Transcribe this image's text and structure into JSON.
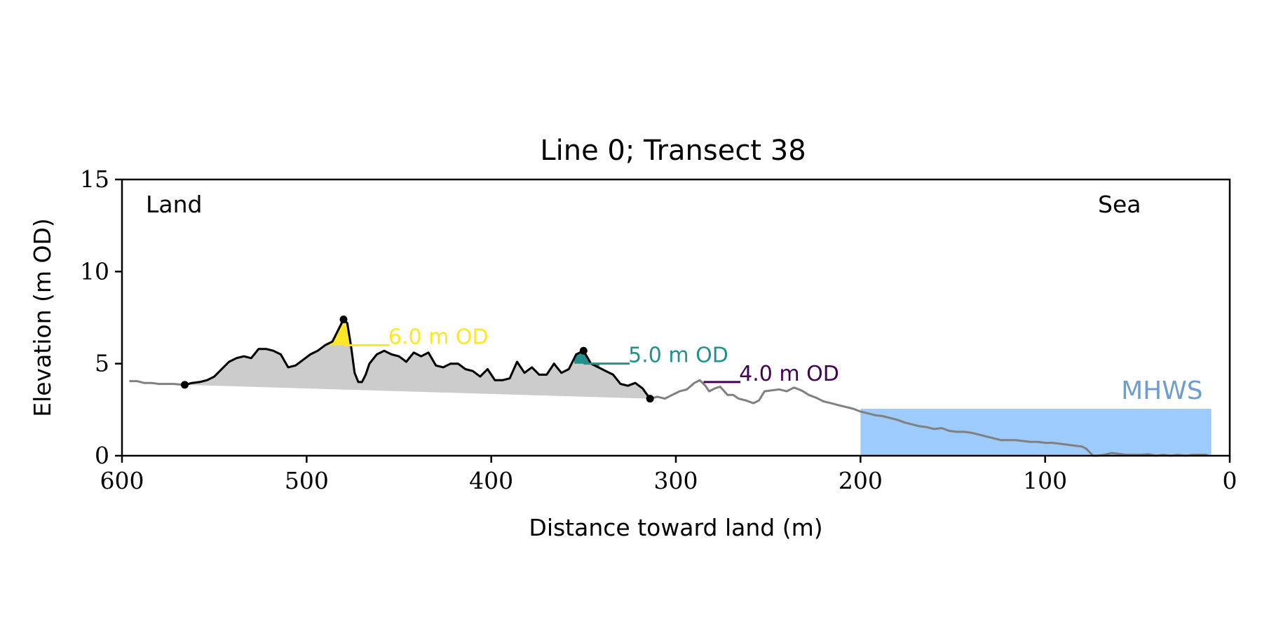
{
  "chart_data": {
    "type": "line",
    "title": "Line 0; Transect 38",
    "xlabel": "Distance toward land (m)",
    "ylabel": "Elevation (m OD)",
    "xlim": [
      600,
      0
    ],
    "ylim": [
      0,
      15
    ],
    "xticks": [
      600,
      500,
      400,
      300,
      200,
      100,
      0
    ],
    "yticks": [
      0,
      5,
      10,
      15
    ],
    "grid": false,
    "legend": "none",
    "annotations": {
      "land": "Land",
      "sea": "Sea"
    },
    "mhws": {
      "label": "MHWS",
      "elevation": 2.55,
      "x_start": 200,
      "x_end": 10,
      "color": "#9dcbfb",
      "label_color": "#6c9fcf"
    },
    "profile": {
      "name": "",
      "color": "#808080",
      "x": [
        596,
        592,
        588,
        584,
        580,
        576,
        572,
        566,
        562,
        558,
        554,
        550,
        546,
        542,
        538,
        534,
        530,
        526,
        522,
        518,
        514,
        510,
        506,
        502,
        498,
        494,
        490,
        486,
        482,
        480,
        478,
        476,
        474,
        472,
        470,
        468,
        466,
        462,
        458,
        454,
        450,
        446,
        442,
        438,
        434,
        430,
        426,
        422,
        418,
        414,
        410,
        406,
        402,
        398,
        394,
        390,
        386,
        382,
        378,
        374,
        370,
        366,
        362,
        358,
        354,
        350,
        346,
        342,
        338,
        334,
        330,
        326,
        322,
        318,
        314,
        310,
        306,
        302,
        298,
        294,
        290,
        287,
        284,
        282,
        279,
        276,
        272,
        269,
        266,
        262,
        258,
        255,
        252,
        248,
        244,
        240,
        236,
        232,
        228,
        224,
        220,
        216,
        212,
        208,
        204,
        200,
        196,
        192,
        188,
        184,
        180,
        176,
        172,
        168,
        164,
        160,
        156,
        152,
        148,
        144,
        140,
        136,
        132,
        128,
        124,
        120,
        116,
        112,
        108,
        104,
        100,
        96,
        92,
        88,
        84,
        80,
        78,
        76,
        74,
        72,
        68,
        64,
        60,
        56,
        52,
        48,
        44,
        40,
        36,
        32,
        28,
        24,
        20,
        16,
        12
      ],
      "y": [
        4.05,
        4.05,
        3.95,
        3.95,
        3.9,
        3.9,
        3.9,
        3.85,
        3.95,
        4.0,
        4.1,
        4.3,
        4.7,
        5.1,
        5.3,
        5.4,
        5.3,
        5.8,
        5.8,
        5.7,
        5.5,
        4.8,
        4.9,
        5.2,
        5.5,
        5.7,
        6.0,
        6.2,
        7.0,
        7.4,
        7.2,
        6.0,
        4.5,
        4.0,
        4.0,
        4.4,
        5.0,
        5.5,
        5.7,
        5.5,
        5.4,
        5.1,
        5.6,
        5.4,
        5.6,
        4.9,
        4.8,
        5.0,
        5.0,
        4.7,
        4.6,
        4.3,
        4.7,
        4.1,
        4.1,
        4.2,
        5.1,
        4.5,
        4.8,
        4.4,
        4.4,
        5.0,
        4.5,
        4.7,
        5.5,
        5.7,
        5.0,
        4.8,
        4.6,
        4.4,
        3.9,
        3.8,
        3.95,
        3.65,
        3.1,
        3.2,
        3.1,
        3.3,
        3.5,
        3.6,
        3.95,
        4.1,
        3.8,
        3.5,
        3.65,
        3.75,
        3.3,
        3.3,
        3.1,
        3.0,
        2.85,
        3.0,
        3.5,
        3.55,
        3.6,
        3.5,
        3.7,
        3.55,
        3.3,
        3.15,
        2.95,
        2.85,
        2.75,
        2.65,
        2.55,
        2.4,
        2.3,
        2.2,
        2.15,
        2.05,
        1.95,
        1.8,
        1.7,
        1.6,
        1.55,
        1.45,
        1.5,
        1.35,
        1.3,
        1.3,
        1.25,
        1.15,
        1.05,
        0.95,
        0.85,
        0.85,
        0.85,
        0.8,
        0.75,
        0.75,
        0.7,
        0.7,
        0.65,
        0.6,
        0.55,
        0.5,
        0.4,
        0.2,
        0.0,
        0.0,
        0.05,
        0.15,
        0.1,
        0.05,
        0.05,
        0.05,
        0.08,
        0.0,
        0.05,
        0.0,
        0.05,
        0.0,
        0.05,
        0.05,
        0.05
      ]
    },
    "dune_section": {
      "color": "#000000",
      "fill_color": "#cccccc",
      "x_start": 566,
      "x_end": 314,
      "start_point": [
        566,
        3.85
      ],
      "end_point": [
        314,
        3.1
      ]
    },
    "peaks": [
      {
        "x": 480,
        "y": 7.4,
        "label": "6.0 m OD",
        "level": 6.0,
        "color": "#fde725",
        "fill_range": [
          490,
          475
        ],
        "line_end": 455
      },
      {
        "x": 350,
        "y": 5.7,
        "label": "5.0 m OD",
        "level": 5.0,
        "color": "#21918c",
        "fill_range": [
          355,
          341
        ],
        "line_end": 325
      }
    ],
    "levels": [
      {
        "label": "4.0 m OD",
        "level": 4.0,
        "color": "#440154",
        "line_start": 285,
        "line_end": 265
      }
    ]
  }
}
